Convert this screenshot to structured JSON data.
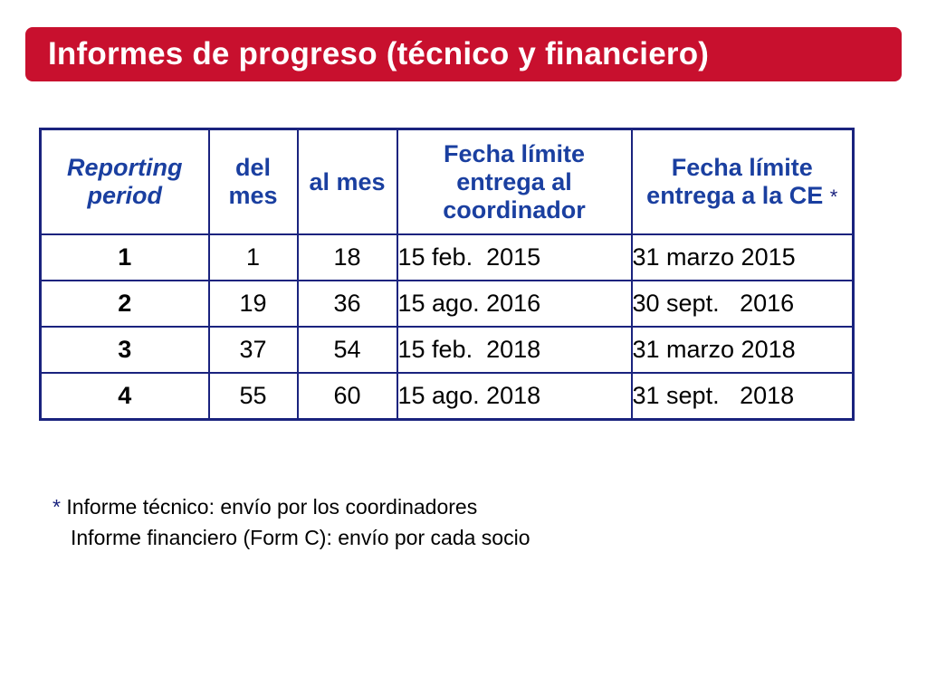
{
  "title": "Informes de progreso (técnico y financiero)",
  "colors": {
    "title_bar": "#c8102e",
    "title_text": "#ffffff",
    "header_text": "#1a3fa0",
    "table_border": "#1a237e"
  },
  "table": {
    "headers": [
      "Reporting period",
      "del mes",
      "al mes",
      "Fecha límite entrega al coordinador",
      "Fecha límite entrega a la CE"
    ],
    "header_marker": "*",
    "rows": [
      {
        "period": "1",
        "from": "1",
        "to": "18",
        "coordinator_deadline": "15 feb.  2015",
        "ce_deadline": "31 marzo 2015"
      },
      {
        "period": "2",
        "from": "19",
        "to": "36",
        "coordinator_deadline": "15 ago. 2016",
        "ce_deadline": "30 sept.   2016"
      },
      {
        "period": "3",
        "from": "37",
        "to": "54",
        "coordinator_deadline": "15 feb.  2018",
        "ce_deadline": "31 marzo 2018"
      },
      {
        "period": "4",
        "from": "55",
        "to": "60",
        "coordinator_deadline": "15 ago. 2018",
        "ce_deadline": "31 sept.   2018"
      }
    ]
  },
  "notes": {
    "marker": "*",
    "line1": "Informe técnico: envío por los coordinadores",
    "line2": "Informe financiero (Form C): envío por cada socio"
  }
}
